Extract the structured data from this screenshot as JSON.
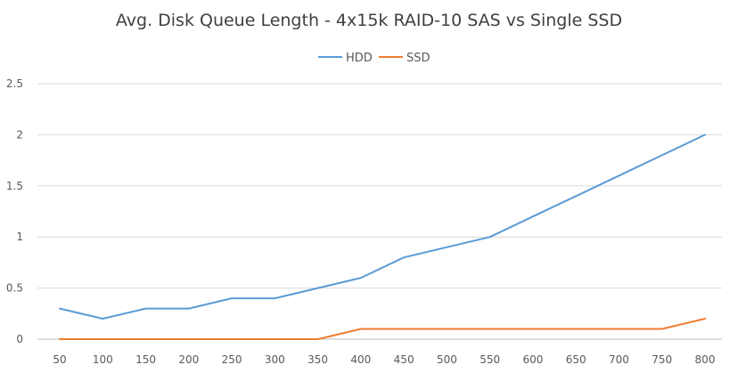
{
  "chart_data": {
    "type": "line",
    "title": "Avg. Disk Queue Length - 4x15k RAID-10 SAS vs Single SSD",
    "xlabel": "",
    "ylabel": "",
    "categories": [
      "50",
      "100",
      "150",
      "200",
      "250",
      "300",
      "350",
      "400",
      "450",
      "500",
      "550",
      "600",
      "650",
      "700",
      "750",
      "800"
    ],
    "series": [
      {
        "name": "HDD",
        "color": "#5b9bd5",
        "values": [
          0.3,
          0.2,
          0.3,
          0.3,
          0.4,
          0.4,
          0.5,
          0.6,
          0.8,
          0.9,
          1.0,
          1.2,
          1.4,
          1.6,
          1.8,
          2.0
        ]
      },
      {
        "name": "SSD",
        "color": "#ed7d31",
        "values": [
          0,
          0,
          0,
          0,
          0,
          0,
          0,
          0.1,
          0.1,
          0.1,
          0.1,
          0.1,
          0.1,
          0.1,
          0.1,
          0.2
        ]
      }
    ],
    "ylim": [
      0,
      2.5
    ],
    "yticks": [
      "0",
      "0.5",
      "1",
      "1.5",
      "2",
      "2.5"
    ],
    "grid": true,
    "legend_position": "top"
  }
}
